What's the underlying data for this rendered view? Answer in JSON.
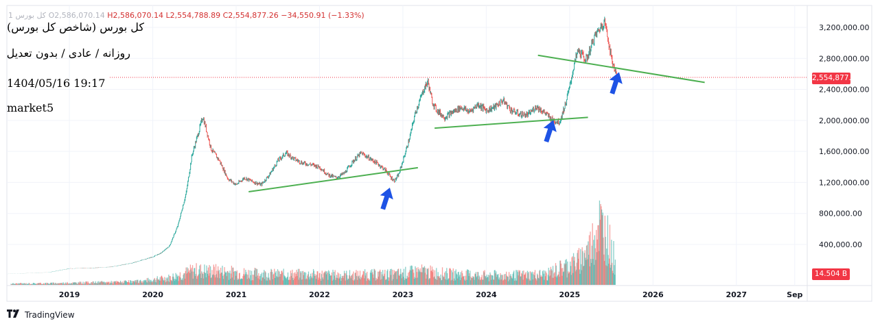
{
  "legend": {
    "symbol": "1 كل بورس",
    "open_label": "O",
    "open": "2,586,070.14",
    "high_label": "H",
    "high": "2,586,070.14",
    "low_label": "L",
    "low": "2,554,788.89",
    "close_label": "C",
    "close": "2,554,877.26",
    "change": "−34,550.91 (−1.33%)"
  },
  "overlay_text": {
    "line1": "کل بورس (شاخص کل بورس)",
    "line2": "روزانه / عادی / بدون تعدیل",
    "line3": "1404/05/16 19:17",
    "line4": "market5"
  },
  "price_tag": "2,554,877.26",
  "volume_tag": "14.504 B",
  "footer_brand": "TradingView",
  "colors": {
    "up": "#26a69a",
    "down": "#ef5350",
    "trendline": "#4caf50",
    "arrow": "#1e53e5",
    "price_tag": "#f23645",
    "grid": "#f0f3fa"
  },
  "icons": [
    "tradingview-logo-icon",
    "up-arrow-icon"
  ],
  "chart_data": {
    "type": "line",
    "title": "کل بورس (شاخص کل بورس)",
    "xlabel": "",
    "ylabel": "",
    "x_ticks": [
      "2019",
      "2020",
      "2021",
      "2022",
      "2023",
      "2024",
      "2025",
      "2026",
      "2027",
      "Sep"
    ],
    "y_ticks": [
      "3,200,000.00",
      "2,800,000.00",
      "2,400,000.00",
      "2,000,000.00",
      "1,600,000.00",
      "1,200,000.00",
      "800,000.00",
      "400,000.00"
    ],
    "ylim": [
      0,
      3450000
    ],
    "xlim": [
      2018.25,
      2027.85
    ],
    "grid": true,
    "last_price": 2554877.26,
    "series": [
      {
        "name": "",
        "x": [
          2018.25,
          2018.5,
          2018.75,
          2019.0,
          2019.25,
          2019.5,
          2019.75,
          2020.0,
          2020.1,
          2020.2,
          2020.3,
          2020.4,
          2020.47,
          2020.55,
          2020.6,
          2020.65,
          2020.7,
          2020.8,
          2020.9,
          2021.0,
          2021.1,
          2021.2,
          2021.3,
          2021.4,
          2021.5,
          2021.6,
          2021.7,
          2021.8,
          2021.9,
          2022.0,
          2022.1,
          2022.2,
          2022.3,
          2022.4,
          2022.5,
          2022.6,
          2022.7,
          2022.8,
          2022.85,
          2022.9,
          2022.95,
          2023.0,
          2023.08,
          2023.15,
          2023.25,
          2023.3,
          2023.35,
          2023.4,
          2023.5,
          2023.6,
          2023.7,
          2023.8,
          2023.9,
          2024.0,
          2024.1,
          2024.2,
          2024.3,
          2024.4,
          2024.5,
          2024.6,
          2024.7,
          2024.8,
          2024.88,
          2024.95,
          2025.0,
          2025.05,
          2025.1,
          2025.2,
          2025.3,
          2025.37,
          2025.42,
          2025.47,
          2025.5,
          2025.53,
          2025.57
        ],
        "y": [
          20000,
          30000,
          40000,
          90000,
          95000,
          110000,
          160000,
          240000,
          290000,
          380000,
          640000,
          1060000,
          1550000,
          1850000,
          2050000,
          1850000,
          1630000,
          1480000,
          1250000,
          1170000,
          1260000,
          1210000,
          1170000,
          1300000,
          1480000,
          1580000,
          1500000,
          1450000,
          1430000,
          1400000,
          1300000,
          1260000,
          1320000,
          1470000,
          1580000,
          1510000,
          1440000,
          1350000,
          1270000,
          1220000,
          1300000,
          1480000,
          1770000,
          2100000,
          2400000,
          2500000,
          2250000,
          2140000,
          2040000,
          2110000,
          2170000,
          2110000,
          2210000,
          2130000,
          2170000,
          2260000,
          2130000,
          2080000,
          2070000,
          2180000,
          2100000,
          2000000,
          1980000,
          2210000,
          2430000,
          2700000,
          2900000,
          2780000,
          3080000,
          3200000,
          3280000,
          3000000,
          2800000,
          2700000,
          2554877
        ]
      }
    ],
    "volume": {
      "x": [
        2018.3,
        2018.8,
        2019.3,
        2019.8,
        2020.2,
        2020.5,
        2020.8,
        2021.1,
        2021.5,
        2021.9,
        2022.3,
        2022.7,
        2022.9,
        2023.2,
        2023.5,
        2023.9,
        2024.3,
        2024.7,
        2024.9,
        2025.1,
        2025.25,
        2025.35,
        2025.45,
        2025.55
      ],
      "values": [
        0.3,
        0.4,
        0.6,
        0.8,
        1.8,
        3.6,
        3.4,
        2.9,
        2.6,
        2.6,
        2.4,
        2.6,
        2.6,
        3.4,
        2.8,
        2.4,
        2.4,
        2.6,
        4.2,
        5.8,
        9.5,
        16.0,
        12.0,
        6.0
      ]
    },
    "trendlines": [
      {
        "x1": 2021.15,
        "y1": 1080000,
        "x2": 2023.18,
        "y2": 1390000
      },
      {
        "x1": 2023.38,
        "y1": 1900000,
        "x2": 2025.22,
        "y2": 2040000
      },
      {
        "x1": 2024.62,
        "y1": 2840000,
        "x2": 2026.62,
        "y2": 2490000
      }
    ],
    "annotations": [
      {
        "type": "arrow-up",
        "x": 2022.8,
        "y": 990000
      },
      {
        "type": "arrow-up",
        "x": 2024.76,
        "y": 1860000
      },
      {
        "type": "arrow-up",
        "x": 2025.55,
        "y": 2480000
      }
    ]
  }
}
